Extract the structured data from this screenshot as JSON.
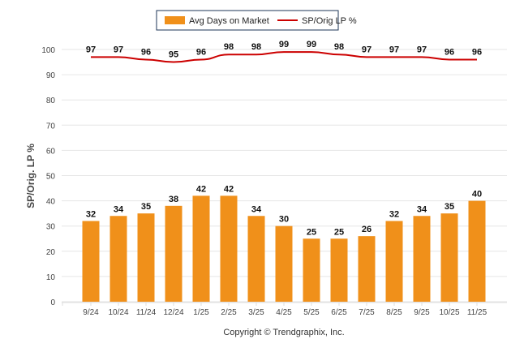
{
  "chart_data": {
    "type": "bar",
    "categories": [
      "9/24",
      "10/24",
      "11/24",
      "12/24",
      "1/25",
      "2/25",
      "3/25",
      "4/25",
      "5/25",
      "6/25",
      "7/25",
      "8/25",
      "9/25",
      "10/25",
      "11/25"
    ],
    "series": [
      {
        "name": "Avg Days on Market",
        "type": "bar",
        "color": "#f0901a",
        "values": [
          32,
          34,
          35,
          38,
          42,
          42,
          34,
          30,
          25,
          25,
          26,
          32,
          34,
          35,
          40
        ]
      },
      {
        "name": "SP/Orig LP %",
        "type": "line",
        "color": "#cc0000",
        "values": [
          97,
          97,
          96,
          95,
          96,
          98,
          98,
          99,
          99,
          98,
          97,
          97,
          97,
          96,
          96
        ]
      }
    ],
    "ylabel": "SP/Orig. LP %",
    "ylim": [
      0,
      100
    ],
    "yticks": [
      0,
      10,
      20,
      30,
      40,
      50,
      60,
      70,
      80,
      90,
      100
    ],
    "grid": true,
    "legend": "top-center"
  },
  "footer": "Copyright © Trendgraphix, Inc."
}
